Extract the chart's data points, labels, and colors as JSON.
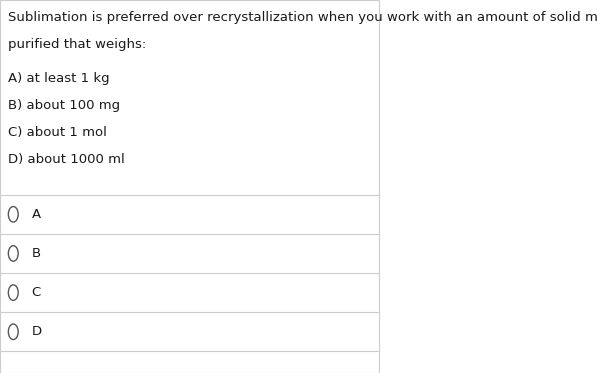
{
  "question": "Sublimation is preferred over recrystallization when you work with an amount of solid material to be\npurified that weighs:",
  "options": [
    "A) at least 1 kg",
    "B) about 100 mg",
    "C) about 1 mol",
    "D) about 1000 ml"
  ],
  "radio_labels": [
    "A",
    "B",
    "C",
    "D"
  ],
  "background_color": "#ffffff",
  "text_color": "#1a1a1a",
  "line_color": "#cccccc",
  "radio_color": "#555555",
  "font_size_question": 9.5,
  "font_size_options": 9.5,
  "font_size_radio": 9.5,
  "fig_width": 5.97,
  "fig_height": 3.73,
  "dpi": 100
}
